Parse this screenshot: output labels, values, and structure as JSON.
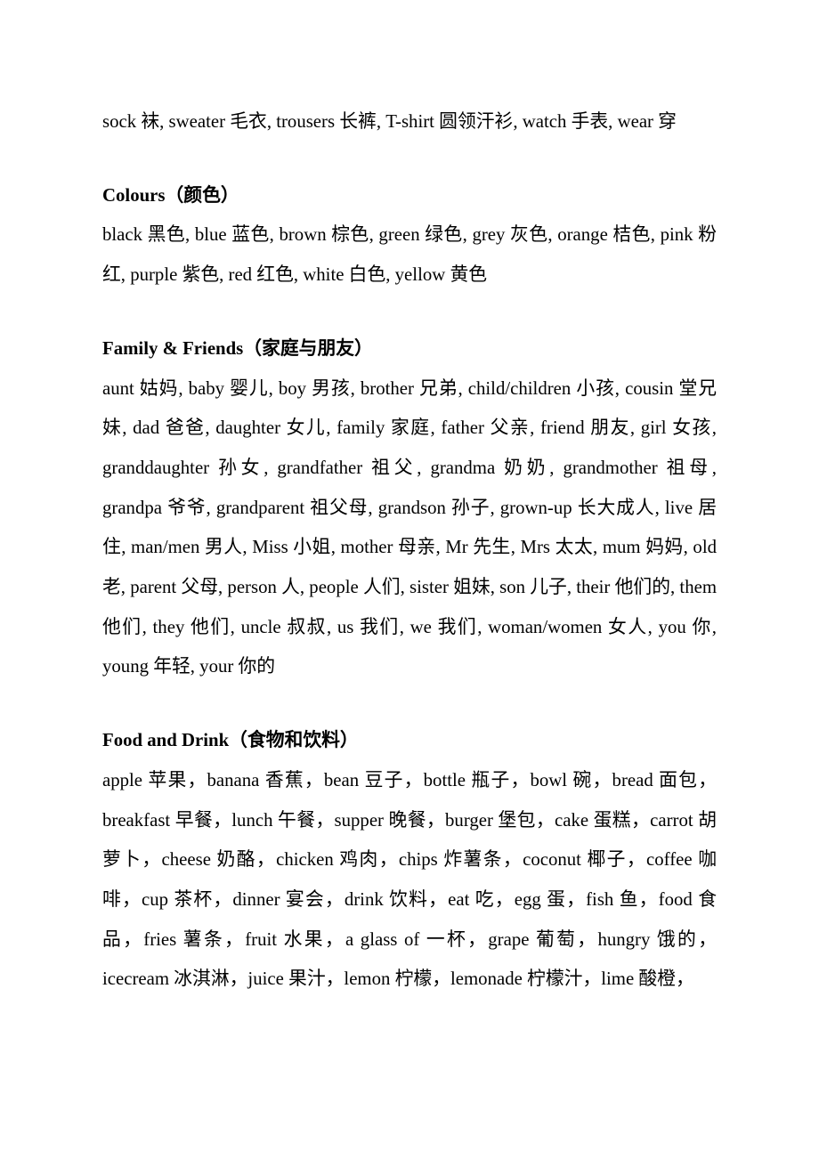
{
  "doc": {
    "text_color": "#000000",
    "background_color": "#ffffff",
    "font_size_pt": 16,
    "line_height": 2.15,
    "sections": [
      {
        "heading": "",
        "body": "sock 袜, sweater 毛衣, trousers 长裤, T-shirt 圆领汗衫, watch 手表, wear 穿"
      },
      {
        "heading": "Colours（颜色）",
        "body": "black 黑色, blue 蓝色, brown 棕色, green 绿色, grey 灰色, orange 桔色, pink 粉红, purple 紫色, red 红色, white 白色, yellow 黄色"
      },
      {
        "heading": "Family & Friends（家庭与朋友）",
        "body": "aunt 姑妈, baby 婴儿, boy 男孩, brother 兄弟, child/children 小孩, cousin 堂兄妹, dad 爸爸, daughter 女儿, family 家庭, father 父亲, friend 朋友, girl 女孩, granddaughter 孙女, grandfather 祖父, grandma 奶奶, grandmother 祖母, grandpa 爷爷, grandparent 祖父母, grandson 孙子, grown-up 长大成人, live 居住, man/men 男人, Miss 小姐, mother 母亲, Mr 先生, Mrs 太太, mum 妈妈, old 老, parent 父母, person 人, people 人们, sister 姐妹, son 儿子, their 他们的, them 他们, they 他们, uncle 叔叔, us 我们, we 我们, woman/women 女人, you 你, young 年轻, your 你的"
      },
      {
        "heading": "Food and Drink（食物和饮料）",
        "body": "apple 苹果，banana 香蕉，bean 豆子，bottle 瓶子，bowl 碗，bread 面包，breakfast 早餐，lunch 午餐，supper 晚餐，burger 堡包，cake 蛋糕，carrot 胡萝卜，cheese 奶酪，chicken 鸡肉，chips 炸薯条，coconut 椰子，coffee 咖啡，cup 茶杯，dinner 宴会，drink 饮料，eat 吃，egg 蛋，fish 鱼，food 食品，fries 薯条，fruit 水果，a glass of 一杯，grape 葡萄，hungry 饿的，icecream 冰淇淋，juice 果汁，lemon 柠檬，lemonade 柠檬汁，lime 酸橙，"
      }
    ]
  }
}
